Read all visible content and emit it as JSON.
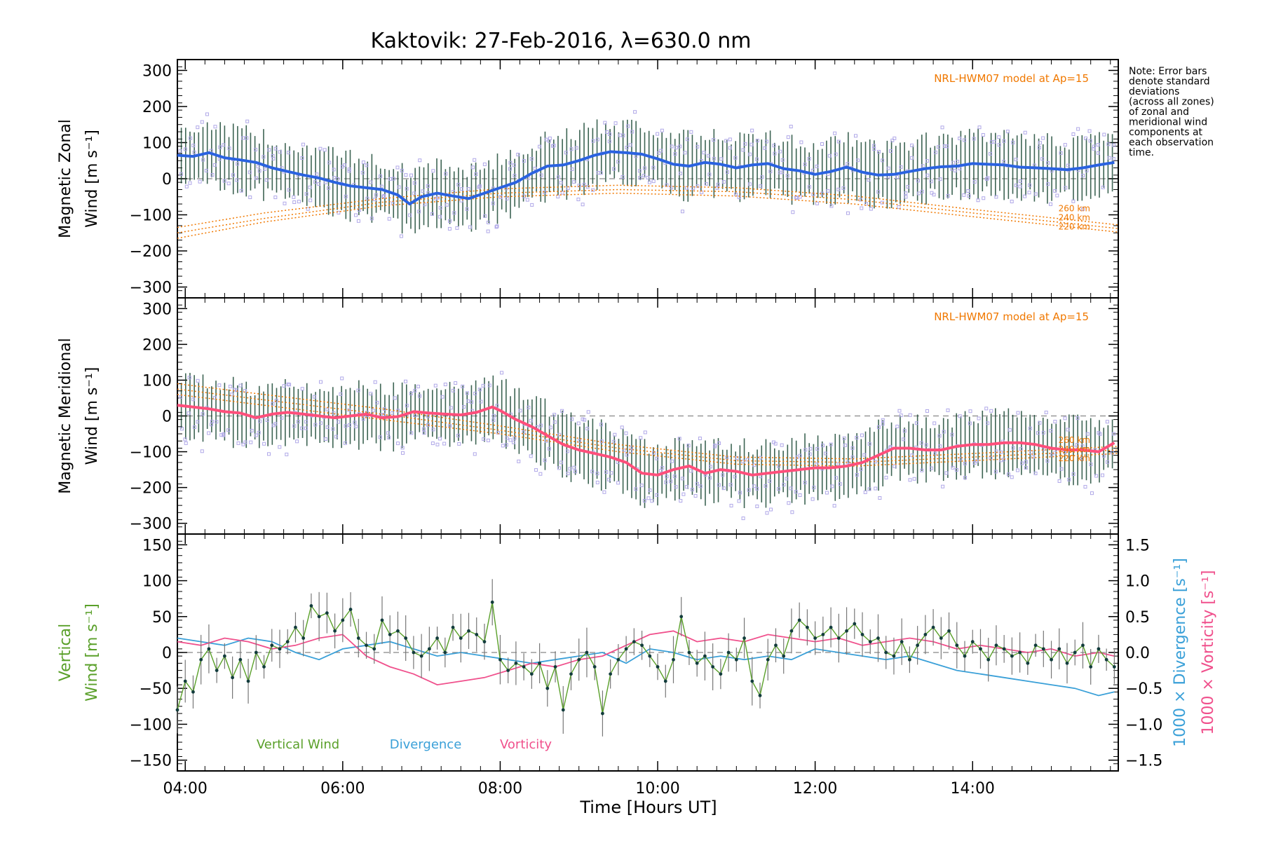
{
  "title": "Kaktovik: 27-Feb-2016, λ=630.0 nm",
  "note_lines": [
    "Note: Error bars",
    "denote standard",
    "deviations",
    "(across all zones)",
    "of zonal and",
    "meridional wind",
    "components at",
    "each observation",
    "time."
  ],
  "xlabel": "Time [Hours UT]",
  "x_ticks": [
    "04:00",
    "06:00",
    "08:00",
    "10:00",
    "12:00",
    "14:00"
  ],
  "colors": {
    "zonal": "#2a62e0",
    "meridional": "#ff4f7b",
    "vertical": "#5aa02a",
    "divergence": "#3aa0d8",
    "vorticity": "#f0508c",
    "model": "#f07800",
    "scatter": "#b0a8e8",
    "errorbar": "#1c4a36"
  },
  "chart_data": [
    {
      "type": "line",
      "panel": "zonal",
      "ylabel_top": "Magnetic Zonal",
      "ylabel_bottom": "Wind [m s⁻¹]",
      "yticks": [
        "300",
        "200",
        "100",
        "0",
        "−100",
        "−200",
        "−300"
      ],
      "ylim": [
        -330,
        330
      ],
      "xlim": [
        3.9,
        15.85
      ],
      "model_label": "NRL-HWM07 model at Ap=15",
      "model_heights": [
        "260 km",
        "240 km",
        "220 km"
      ],
      "series": [
        {
          "role": "mean",
          "x": [
            3.9,
            4.1,
            4.3,
            4.5,
            4.7,
            4.9,
            5.1,
            5.3,
            5.5,
            5.7,
            5.9,
            6.1,
            6.3,
            6.5,
            6.7,
            6.85,
            7.0,
            7.2,
            7.4,
            7.6,
            7.8,
            8.0,
            8.2,
            8.4,
            8.6,
            8.8,
            9.0,
            9.2,
            9.4,
            9.6,
            9.8,
            10.0,
            10.2,
            10.4,
            10.6,
            10.8,
            11.0,
            11.2,
            11.4,
            11.6,
            11.8,
            12.0,
            12.2,
            12.4,
            12.6,
            12.8,
            13.0,
            13.2,
            13.4,
            13.6,
            13.8,
            14.0,
            14.2,
            14.4,
            14.6,
            14.8,
            15.0,
            15.2,
            15.4,
            15.6,
            15.8
          ],
          "y": [
            65,
            62,
            72,
            58,
            52,
            45,
            30,
            20,
            10,
            2,
            -10,
            -20,
            -25,
            -30,
            -45,
            -70,
            -50,
            -40,
            -48,
            -55,
            -40,
            -25,
            -10,
            15,
            35,
            38,
            50,
            65,
            75,
            72,
            68,
            55,
            40,
            35,
            45,
            40,
            30,
            38,
            42,
            28,
            22,
            12,
            20,
            32,
            18,
            10,
            12,
            20,
            28,
            33,
            35,
            42,
            40,
            38,
            32,
            30,
            28,
            25,
            30,
            38,
            45
          ]
        },
        {
          "role": "model",
          "name": "220 km",
          "x": [
            3.9,
            5.0,
            6.5,
            8.0,
            9.5,
            11.0,
            12.5,
            14.0,
            15.85
          ],
          "y": [
            -165,
            -120,
            -75,
            -50,
            -40,
            -48,
            -70,
            -105,
            -148
          ]
        },
        {
          "role": "model",
          "name": "240 km",
          "x": [
            3.9,
            5.0,
            6.5,
            8.0,
            9.5,
            11.0,
            12.5,
            14.0,
            15.85
          ],
          "y": [
            -150,
            -110,
            -65,
            -40,
            -30,
            -36,
            -58,
            -95,
            -138
          ]
        },
        {
          "role": "model",
          "name": "260 km",
          "x": [
            3.9,
            5.0,
            6.5,
            8.0,
            9.5,
            11.0,
            12.5,
            14.0,
            15.85
          ],
          "y": [
            -135,
            -95,
            -55,
            -28,
            -18,
            -25,
            -48,
            -85,
            -128
          ]
        }
      ]
    },
    {
      "type": "line",
      "panel": "meridional",
      "ylabel_top": "Magnetic Meridional",
      "ylabel_bottom": "Wind [m s⁻¹]",
      "yticks": [
        "300",
        "200",
        "100",
        "0",
        "−100",
        "−200",
        "−300"
      ],
      "ylim": [
        -330,
        330
      ],
      "xlim": [
        3.9,
        15.85
      ],
      "model_label": "NRL-HWM07 model at Ap=15",
      "model_heights": [
        "260 km",
        "240 km",
        "220 km"
      ],
      "series": [
        {
          "role": "mean",
          "x": [
            3.9,
            4.1,
            4.3,
            4.5,
            4.7,
            4.9,
            5.1,
            5.3,
            5.5,
            5.7,
            5.9,
            6.1,
            6.3,
            6.5,
            6.7,
            6.9,
            7.1,
            7.3,
            7.5,
            7.7,
            7.9,
            8.0,
            8.2,
            8.4,
            8.6,
            8.8,
            9.0,
            9.2,
            9.4,
            9.6,
            9.8,
            10.0,
            10.2,
            10.4,
            10.6,
            10.8,
            11.0,
            11.2,
            11.4,
            11.6,
            11.8,
            12.0,
            12.2,
            12.4,
            12.6,
            12.8,
            13.0,
            13.2,
            13.4,
            13.6,
            13.8,
            14.0,
            14.2,
            14.4,
            14.6,
            14.8,
            15.0,
            15.2,
            15.4,
            15.6,
            15.8
          ],
          "y": [
            30,
            25,
            20,
            12,
            8,
            -5,
            5,
            10,
            5,
            0,
            -5,
            0,
            5,
            -5,
            -2,
            12,
            8,
            5,
            3,
            10,
            25,
            15,
            -10,
            -30,
            -55,
            -80,
            -95,
            -105,
            -115,
            -130,
            -160,
            -165,
            -150,
            -140,
            -160,
            -150,
            -155,
            -165,
            -160,
            -155,
            -150,
            -145,
            -145,
            -140,
            -130,
            -110,
            -90,
            -90,
            -95,
            -95,
            -85,
            -80,
            -80,
            -75,
            -75,
            -80,
            -90,
            -95,
            -95,
            -100,
            -75
          ]
        },
        {
          "role": "model",
          "name": "220 km",
          "x": [
            3.9,
            5.0,
            6.5,
            8.0,
            9.5,
            11.0,
            12.5,
            14.0,
            15.85
          ],
          "y": [
            60,
            30,
            -10,
            -50,
            -100,
            -135,
            -140,
            -125,
            -105
          ]
        },
        {
          "role": "model",
          "name": "240 km",
          "x": [
            3.9,
            5.0,
            6.5,
            8.0,
            9.5,
            11.0,
            12.5,
            14.0,
            15.85
          ],
          "y": [
            75,
            45,
            5,
            -40,
            -90,
            -125,
            -130,
            -115,
            -95
          ]
        },
        {
          "role": "model",
          "name": "260 km",
          "x": [
            3.9,
            5.0,
            6.5,
            8.0,
            9.5,
            11.0,
            12.5,
            14.0,
            15.85
          ],
          "y": [
            90,
            60,
            20,
            -28,
            -80,
            -115,
            -120,
            -105,
            -85
          ]
        }
      ]
    },
    {
      "type": "line",
      "panel": "vertical",
      "ylabel_top": "Vertical",
      "ylabel_bottom": "Wind [m s⁻¹]",
      "yticks": [
        "150",
        "100",
        "50",
        "0",
        "−50",
        "−100",
        "−150"
      ],
      "ylim": [
        -165,
        165
      ],
      "xlim": [
        3.9,
        15.85
      ],
      "y2label_div": "1000 × Divergence [s⁻¹]",
      "y2label_vor": "1000 × Vorticity [s⁻¹]",
      "y2ticks": [
        "1.5",
        "1.0",
        "0.5",
        "0.0",
        "−0.5",
        "−1.0",
        "−1.5"
      ],
      "y2lim": [
        -1.65,
        1.65
      ],
      "legend": [
        "Vertical Wind",
        "Divergence",
        "Vorticity"
      ],
      "series": [
        {
          "name": "Vertical Wind",
          "x": [
            3.9,
            4.0,
            4.1,
            4.2,
            4.3,
            4.4,
            4.5,
            4.6,
            4.7,
            4.8,
            4.9,
            5.0,
            5.1,
            5.2,
            5.3,
            5.4,
            5.5,
            5.6,
            5.7,
            5.8,
            5.9,
            6.0,
            6.1,
            6.2,
            6.3,
            6.4,
            6.5,
            6.6,
            6.7,
            6.8,
            6.9,
            7.0,
            7.1,
            7.2,
            7.3,
            7.4,
            7.5,
            7.6,
            7.7,
            7.8,
            7.9,
            8.0,
            8.1,
            8.2,
            8.3,
            8.4,
            8.5,
            8.6,
            8.7,
            8.8,
            8.9,
            9.0,
            9.1,
            9.2,
            9.3,
            9.4,
            9.5,
            9.6,
            9.7,
            9.8,
            9.9,
            10.0,
            10.1,
            10.2,
            10.3,
            10.4,
            10.5,
            10.6,
            10.7,
            10.8,
            10.9,
            11.0,
            11.1,
            11.2,
            11.3,
            11.4,
            11.5,
            11.6,
            11.7,
            11.8,
            11.9,
            12.0,
            12.1,
            12.2,
            12.3,
            12.4,
            12.5,
            12.6,
            12.7,
            12.8,
            12.9,
            13.0,
            13.1,
            13.2,
            13.3,
            13.4,
            13.5,
            13.6,
            13.7,
            13.8,
            13.9,
            14.0,
            14.1,
            14.2,
            14.3,
            14.4,
            14.5,
            14.6,
            14.7,
            14.8,
            14.9,
            15.0,
            15.1,
            15.2,
            15.3,
            15.4,
            15.5,
            15.6,
            15.7,
            15.8
          ],
          "y": [
            -80,
            -40,
            -55,
            -10,
            5,
            -25,
            -5,
            -35,
            -10,
            -40,
            0,
            -20,
            10,
            5,
            15,
            35,
            20,
            65,
            50,
            55,
            30,
            45,
            60,
            20,
            10,
            5,
            45,
            25,
            30,
            20,
            0,
            -5,
            5,
            20,
            0,
            35,
            20,
            30,
            25,
            15,
            70,
            -10,
            -25,
            -15,
            -20,
            -30,
            -15,
            -50,
            -20,
            -80,
            -30,
            -10,
            0,
            -20,
            -85,
            -30,
            -10,
            5,
            15,
            10,
            -5,
            -20,
            -40,
            -10,
            50,
            0,
            -15,
            -5,
            -20,
            -30,
            0,
            -10,
            20,
            -40,
            -60,
            -10,
            10,
            -5,
            30,
            45,
            35,
            20,
            25,
            35,
            20,
            30,
            40,
            25,
            15,
            20,
            0,
            -5,
            15,
            -10,
            10,
            25,
            35,
            20,
            30,
            10,
            -5,
            15,
            5,
            -10,
            10,
            5,
            -5,
            0,
            -15,
            10,
            5,
            -10,
            5,
            -15,
            0,
            10,
            -20,
            5,
            -10,
            -20
          ]
        },
        {
          "name": "Divergence",
          "x": [
            3.9,
            4.2,
            4.5,
            4.8,
            5.1,
            5.4,
            5.7,
            6.0,
            6.3,
            6.6,
            6.9,
            7.2,
            7.5,
            7.8,
            8.1,
            8.4,
            8.7,
            9.0,
            9.3,
            9.6,
            9.9,
            10.2,
            10.5,
            10.8,
            11.1,
            11.4,
            11.7,
            12.0,
            12.3,
            12.6,
            12.9,
            13.2,
            13.5,
            13.8,
            14.1,
            14.4,
            14.7,
            15.0,
            15.3,
            15.6,
            15.8
          ],
          "y": [
            0.2,
            0.15,
            0.1,
            0.2,
            0.15,
            0.0,
            -0.1,
            0.05,
            0.1,
            0.15,
            0.05,
            -0.05,
            0.0,
            -0.05,
            -0.1,
            -0.15,
            -0.1,
            -0.05,
            0.0,
            -0.15,
            0.05,
            0.0,
            -0.1,
            -0.05,
            -0.1,
            -0.05,
            -0.1,
            0.05,
            0.0,
            -0.05,
            -0.1,
            -0.05,
            -0.15,
            -0.25,
            -0.3,
            -0.35,
            -0.4,
            -0.45,
            -0.5,
            -0.6,
            -0.55
          ]
        },
        {
          "name": "Vorticity",
          "x": [
            3.9,
            4.2,
            4.5,
            4.8,
            5.1,
            5.4,
            5.7,
            6.0,
            6.3,
            6.6,
            6.9,
            7.2,
            7.5,
            7.8,
            8.1,
            8.4,
            8.7,
            9.0,
            9.3,
            9.6,
            9.9,
            10.2,
            10.5,
            10.8,
            11.1,
            11.4,
            11.7,
            12.0,
            12.3,
            12.6,
            12.9,
            13.2,
            13.5,
            13.8,
            14.1,
            14.4,
            14.7,
            15.0,
            15.3,
            15.6,
            15.8
          ],
          "y": [
            0.15,
            0.1,
            0.2,
            0.15,
            0.05,
            0.1,
            0.2,
            0.25,
            -0.05,
            -0.2,
            -0.3,
            -0.45,
            -0.4,
            -0.35,
            -0.25,
            -0.15,
            -0.2,
            -0.1,
            -0.05,
            0.1,
            0.25,
            0.3,
            0.15,
            0.2,
            0.15,
            0.25,
            0.2,
            0.15,
            0.2,
            0.1,
            0.15,
            0.2,
            0.15,
            0.05,
            0.1,
            0.05,
            0.0,
            0.05,
            -0.05,
            0.0,
            -0.05
          ]
        }
      ]
    }
  ]
}
